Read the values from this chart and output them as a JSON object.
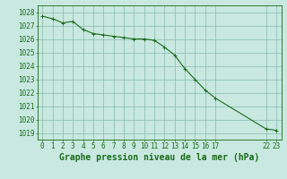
{
  "x_values": [
    0,
    1,
    2,
    3,
    4,
    5,
    6,
    7,
    8,
    9,
    10,
    11,
    12,
    13,
    14,
    15,
    16,
    17,
    22,
    23
  ],
  "y_values": [
    1027.7,
    1027.5,
    1027.2,
    1027.3,
    1026.7,
    1026.4,
    1026.3,
    1026.2,
    1026.1,
    1026.0,
    1026.0,
    1025.9,
    1025.4,
    1024.8,
    1023.8,
    1023.0,
    1022.2,
    1021.6,
    1019.3,
    1019.2
  ],
  "line_color": "#1a6b1a",
  "marker_color": "#1a6b1a",
  "bg_color": "#c8e8e0",
  "grid_color": "#88bbb0",
  "title": "Graphe pression niveau de la mer (hPa)",
  "ylim_min": 1018.5,
  "ylim_max": 1028.5,
  "xlim_min": -0.5,
  "xlim_max": 23.5,
  "yticks": [
    1019,
    1020,
    1021,
    1022,
    1023,
    1024,
    1025,
    1026,
    1027,
    1028
  ],
  "xticks": [
    0,
    1,
    2,
    3,
    4,
    5,
    6,
    7,
    8,
    9,
    10,
    11,
    12,
    13,
    14,
    15,
    16,
    17,
    22,
    23
  ],
  "tick_fontsize": 5.5,
  "title_fontsize": 7.0,
  "line_width": 0.8,
  "marker_size": 2.2
}
